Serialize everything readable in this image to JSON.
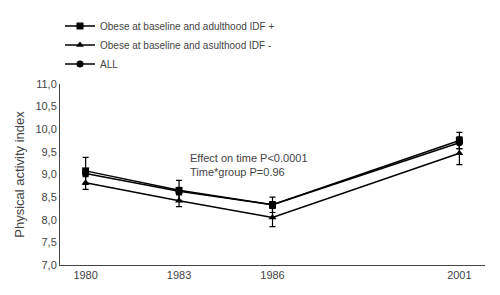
{
  "chart_data": {
    "type": "line",
    "categories": [
      "1980",
      "1983",
      "1986",
      null,
      "2001"
    ],
    "color": "black",
    "series": [
      {
        "name": "Obese at baseline and adulthood IDF +",
        "marker": "square",
        "values": [
          9.08,
          8.65,
          8.33,
          null,
          9.75
        ],
        "errors": [
          0.3,
          0.22,
          0.17,
          null,
          0.18
        ]
      },
      {
        "name": "Obese at baseline and asulthood IDF -",
        "marker": "triangle-up",
        "values": [
          8.82,
          8.42,
          8.05,
          null,
          9.47
        ],
        "errors": [
          0.15,
          0.13,
          0.2,
          null,
          0.25
        ]
      },
      {
        "name": "ALL",
        "marker": "circle",
        "values": [
          9.02,
          8.63,
          8.33,
          null,
          9.7
        ],
        "errors": [
          0.07,
          0.07,
          0.07,
          null,
          0.13
        ]
      }
    ],
    "ylabel": "Physical activity index",
    "annotation": "Effect on time P<0.0001\nTime*group P=0.96",
    "ylim": [
      7.0,
      11.0
    ],
    "yticks": [
      {
        "value": 7.0,
        "label": "7,0"
      },
      {
        "value": 7.5,
        "label": "7,5"
      },
      {
        "value": 8.0,
        "label": "8,0"
      },
      {
        "value": 8.5,
        "label": "8,5"
      },
      {
        "value": 9.0,
        "label": "9,0"
      },
      {
        "value": 9.5,
        "label": "9,5"
      },
      {
        "value": 10.0,
        "label": "10,0"
      },
      {
        "value": 10.5,
        "label": "10,5"
      },
      {
        "value": 11.0,
        "label": "11,0"
      }
    ],
    "grid": false,
    "legend": "top"
  }
}
